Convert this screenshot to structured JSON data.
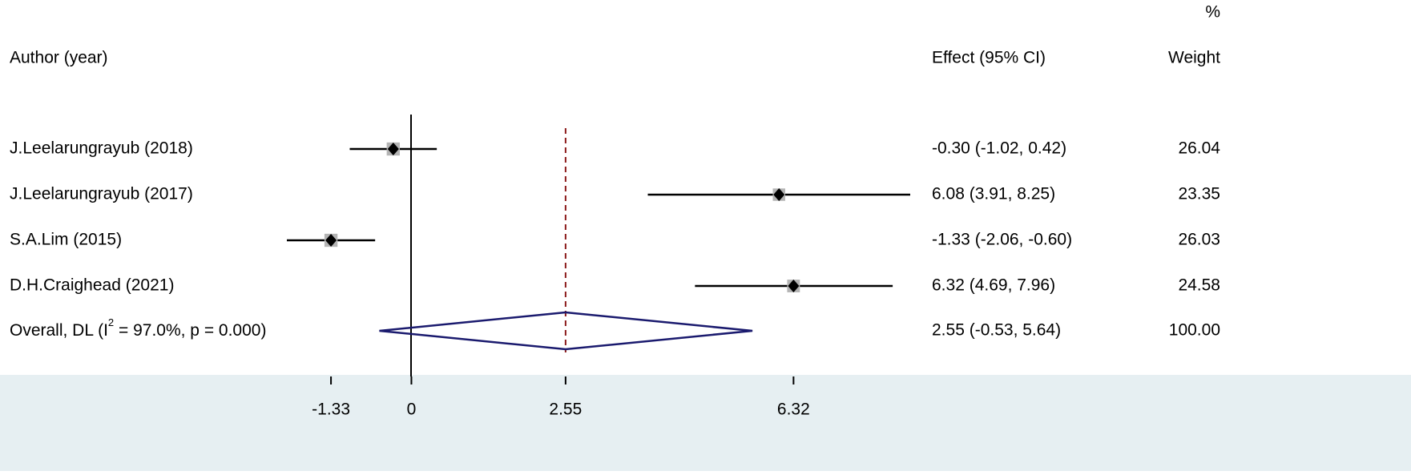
{
  "chart_data": {
    "type": "forest",
    "header_author": "Author (year)",
    "header_effect": "Effect (95% CI)",
    "header_weight_unit": "%",
    "header_weight": "Weight",
    "studies": [
      "J.Leelarungrayub (2018)",
      "J.Leelarungrayub (2017)",
      "S.A.Lim (2015)",
      "D.H.Craighead (2021)"
    ],
    "effects": [
      -0.3,
      6.08,
      -1.33,
      6.32
    ],
    "ci_low": [
      -1.02,
      3.91,
      -2.06,
      4.69
    ],
    "ci_high": [
      0.42,
      8.25,
      -0.6,
      7.96
    ],
    "weights": [
      26.04,
      23.35,
      26.03,
      24.58
    ],
    "effect_labels": [
      "-0.30 (-1.02, 0.42)",
      "6.08 (3.91, 8.25)",
      "-1.33 (-2.06, -0.60)",
      "6.32 (4.69, 7.96)"
    ],
    "overall": {
      "label_before": "Overall, DL (I",
      "label_sup": "2",
      "label_after": " = 97.0%, p = 0.000)",
      "effect": 2.55,
      "ci_low": -0.53,
      "ci_high": 5.64,
      "weight": 100,
      "weight_label": "100.00",
      "effect_label": "2.55 (-0.53, 5.64)"
    },
    "xlim": [
      -2.06,
      8.25
    ],
    "xticks": [
      -1.33,
      0,
      2.55,
      6.32
    ],
    "box_color": "#b4b4b4",
    "diamond_color": "#1a1a6e",
    "overall_line_color": "#8b1a1a"
  }
}
